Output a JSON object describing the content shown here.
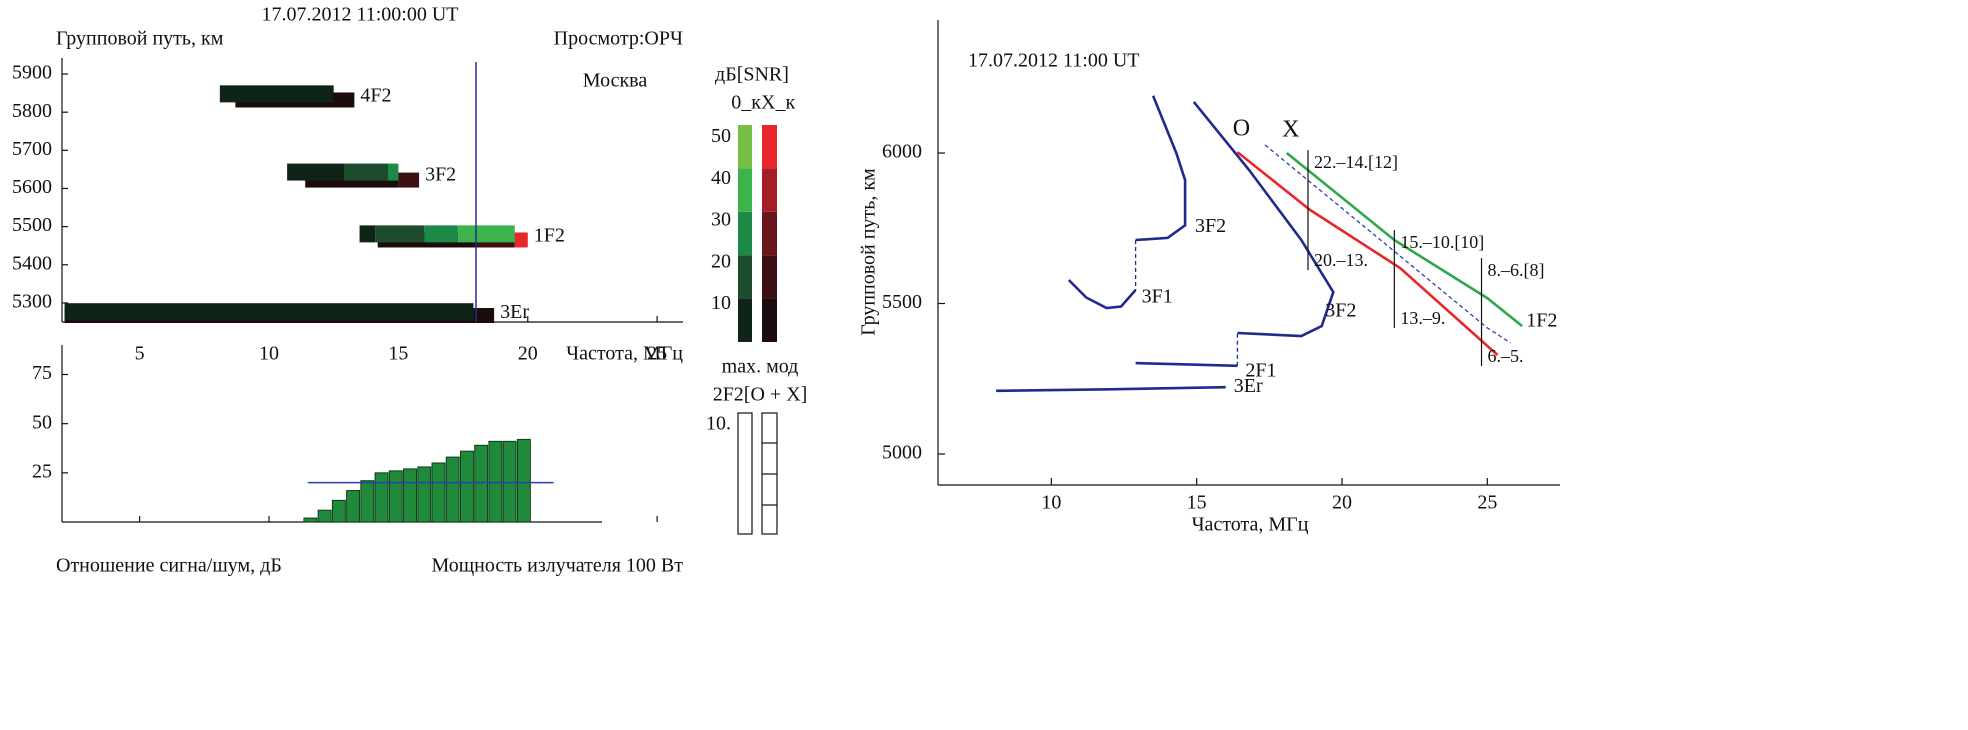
{
  "chart_data": [
    {
      "type": "ionogram",
      "title": "17.07.2012 11:00:00 UT",
      "ylabel": "Групповой путь, км",
      "view_label": "Просмотр:ОРЧ",
      "location": "Москва",
      "xlabel": "Частота, МГц",
      "xlim": [
        2,
        26
      ],
      "xticks": [
        5,
        10,
        15,
        20,
        25
      ],
      "ylim": [
        5250,
        5942
      ],
      "yticks": [
        5300,
        5400,
        5500,
        5600,
        5700,
        5800,
        5900
      ],
      "marker_line": 18,
      "marker_color": "#2b2b9a",
      "colorbar": {
        "title": "дБ[SNR]",
        "o_label": "0_к",
        "x_label": "X_к",
        "clim": [
          1,
          53
        ],
        "ticks": [
          10,
          20,
          30,
          40,
          50
        ],
        "o_colors": [
          "#0e2416",
          "#1d4d2e",
          "#1c8a47",
          "#3db34c",
          "#76c043"
        ],
        "x_colors": [
          "#1c0b0c",
          "#3d1114",
          "#6a1519",
          "#a61d24",
          "#e8272c"
        ]
      },
      "modes": [
        {
          "name": "4F2",
          "o": {
            "y": 5848,
            "segments": [
              [
                8.1,
                12.5,
                5
              ]
            ]
          },
          "x": {
            "y": 5832,
            "segments": [
              [
                8.7,
                13.3,
                5
              ]
            ]
          }
        },
        {
          "name": "3F2",
          "o": {
            "y": 5643,
            "segments": [
              [
                10.7,
                12.9,
                5
              ],
              [
                12.9,
                14.6,
                15
              ],
              [
                14.6,
                15.0,
                25
              ]
            ]
          },
          "x": {
            "y": 5622,
            "segments": [
              [
                11.4,
                15.0,
                5
              ],
              [
                15.0,
                15.8,
                15
              ]
            ]
          }
        },
        {
          "name": "1F2",
          "o": {
            "y": 5481,
            "segments": [
              [
                13.5,
                14.1,
                5
              ],
              [
                14.1,
                16.0,
                15
              ],
              [
                16.0,
                17.3,
                25
              ],
              [
                17.3,
                19.5,
                35
              ]
            ]
          },
          "x": {
            "y": 5465,
            "segments": [
              [
                14.2,
                18.1,
                5
              ],
              [
                18.1,
                19.5,
                15
              ],
              [
                19.5,
                20.0,
                50
              ]
            ]
          }
        },
        {
          "name": "3Er",
          "o": {
            "y": 5277,
            "segments": [
              [
                2.1,
                17.9,
                5
              ]
            ]
          },
          "x": {
            "y": 5267,
            "segments": [
              [
                2.1,
                18.7,
                5
              ]
            ]
          }
        }
      ]
    },
    {
      "type": "bar",
      "xlabel": "Отношение сигна/шум, дБ",
      "caption": "Мощность излучателя 100 Вт",
      "xlim": [
        2,
        26
      ],
      "xticks": [
        5,
        10,
        15,
        20,
        25
      ],
      "ylim": [
        0,
        90
      ],
      "yticks": [
        25,
        50,
        75
      ],
      "x": [
        11.6,
        12.15,
        12.7,
        13.25,
        13.8,
        14.35,
        14.9,
        15.45,
        16.0,
        16.55,
        17.1,
        17.65,
        18.2,
        18.75,
        19.3,
        19.85
      ],
      "values": [
        2,
        6,
        11,
        16,
        21,
        25,
        26,
        27,
        28,
        30,
        33,
        36,
        39,
        41,
        41,
        42
      ],
      "bar_width": 0.5,
      "color": "#1f8a3a",
      "ref_line": {
        "value": 20,
        "x": [
          11.5,
          21
        ],
        "color": "#2b3fb0"
      }
    },
    {
      "type": "mode-indicator",
      "title": "max. мод",
      "subtitle": "2F2[O + X]",
      "label": "10."
    },
    {
      "type": "line",
      "title": "17.07.2012 11:00 UT",
      "xlabel": "Частота, МГц",
      "ylabel": "Групповой путь, км",
      "xlim": [
        6.1,
        27.5
      ],
      "xticks": [
        10,
        15,
        20,
        25
      ],
      "ylim": [
        4897,
        6442
      ],
      "yticks": [
        5000,
        5500,
        6000
      ],
      "series": [
        {
          "name": "3Er",
          "color": "#1f2a8c",
          "x": [
            8.1,
            12,
            16
          ],
          "y": [
            5210,
            5215,
            5222
          ]
        },
        {
          "name": "2F1",
          "color": "#1f2a8c",
          "x": [
            12.9,
            14.5,
            16.4
          ],
          "y": [
            5302,
            5298,
            5293
          ]
        },
        {
          "color": "#1f2a8c",
          "dashed": true,
          "x": [
            16.4,
            16.4
          ],
          "y": [
            5293,
            5402
          ]
        },
        {
          "name": "3F2",
          "color": "#1f2a8c",
          "x": [
            16.4,
            18.6,
            19.3,
            19.7,
            18.6,
            16.8,
            14.9
          ],
          "y": [
            5402,
            5392,
            5425,
            5538,
            5711,
            5944,
            6170
          ]
        },
        {
          "name": "3F2",
          "color": "#1f2a8c",
          "x": [
            13.5,
            14.3,
            14.6,
            14.6,
            14.0,
            12.9
          ],
          "y": [
            6190,
            6000,
            5910,
            5760,
            5718,
            5711
          ]
        },
        {
          "color": "#1f2a8c",
          "dashed": true,
          "x": [
            12.9,
            12.9
          ],
          "y": [
            5711,
            5545
          ]
        },
        {
          "name": "3F1",
          "color": "#1f2a8c",
          "x": [
            12.9,
            12.4,
            11.9,
            11.2,
            10.6
          ],
          "y": [
            5545,
            5490,
            5485,
            5520,
            5578
          ]
        },
        {
          "start_label": "O",
          "color": "#e8272c",
          "x": [
            16.4,
            18.9,
            22,
            25.35
          ],
          "y": [
            6003,
            5811,
            5618,
            5329
          ]
        },
        {
          "color": "#2b3fb0",
          "dashed": true,
          "x": [
            17.35,
            25,
            25.8
          ],
          "y": [
            6027,
            5419,
            5369
          ]
        },
        {
          "name": "1F2",
          "start_label": "X",
          "color": "#2ea84a",
          "x": [
            18.1,
            21.8,
            25,
            26.2
          ],
          "y": [
            6000,
            5711,
            5518,
            5425
          ]
        }
      ],
      "markers": [
        {
          "x": 18.83,
          "y": [
            5611,
            6010
          ],
          "top_label": "22.–14.[12]",
          "bottom_label": "20.–13."
        },
        {
          "x": 21.8,
          "y": [
            5419,
            5744
          ],
          "top_label": "15.–10.[10]",
          "bottom_label": "13.–9."
        },
        {
          "x": 24.8,
          "y": [
            5292,
            5651
          ],
          "top_label": "8.–6.[8]",
          "bottom_label": "6.–5."
        }
      ]
    }
  ]
}
